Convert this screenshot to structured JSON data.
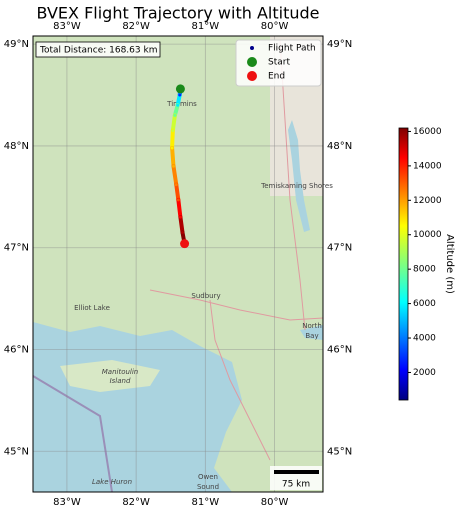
{
  "chart_data": {
    "type": "trajectory",
    "title": "BVEX Flight Trajectory with Altitude",
    "xlim": [
      -83.49,
      -79.3
    ],
    "ylim": [
      44.6,
      49.08
    ],
    "xticks": [
      {
        "value": -83,
        "label": "83°W"
      },
      {
        "value": -82,
        "label": "82°W"
      },
      {
        "value": -81,
        "label": "81°W"
      },
      {
        "value": -80,
        "label": "80°W"
      }
    ],
    "yticks": [
      {
        "value": 45,
        "label": "45°N"
      },
      {
        "value": 46,
        "label": "46°N"
      },
      {
        "value": 47,
        "label": "47°N"
      },
      {
        "value": 48,
        "label": "48°N"
      },
      {
        "value": 49,
        "label": "49°N"
      }
    ],
    "grid": true,
    "legend": "upper right",
    "colormap": "jet",
    "series": [
      {
        "name": "Flight Path",
        "color": "#00008b",
        "x": [
          -81.36,
          -81.37,
          -81.4,
          -81.44,
          -81.47,
          -81.48,
          -81.46,
          -81.42,
          -81.39,
          -81.36,
          -81.33,
          -81.3
        ],
        "values": [
          48.56,
          48.5,
          48.4,
          48.3,
          48.15,
          47.98,
          47.8,
          47.62,
          47.47,
          47.3,
          47.15,
          47.04
        ],
        "altitude": [
          500,
          3000,
          6000,
          8000,
          9500,
          10500,
          11500,
          12200,
          13000,
          14200,
          15500,
          16100
        ]
      },
      {
        "name": "Start",
        "color": "#1a8a1a",
        "x": [
          -81.36
        ],
        "values": [
          48.56
        ]
      },
      {
        "name": "End",
        "color": "#ee1111",
        "x": [
          -81.3
        ],
        "values": [
          47.04
        ]
      }
    ],
    "colorbar": {
      "label": "Altitude (m)",
      "clim": [
        400,
        16200
      ],
      "ticks": [
        2000,
        4000,
        6000,
        8000,
        10000,
        12000,
        14000,
        16000
      ]
    },
    "annotation": "Total Distance: 168.63 km",
    "scale_bar": "75 km",
    "places": [
      "Timmins",
      "Temiskaming Shores",
      "Elliot Lake",
      "Sudbury",
      "North",
      "Bay",
      "Manitoulin",
      "Island",
      "Owen",
      "Sound",
      "Lake Huron"
    ]
  }
}
